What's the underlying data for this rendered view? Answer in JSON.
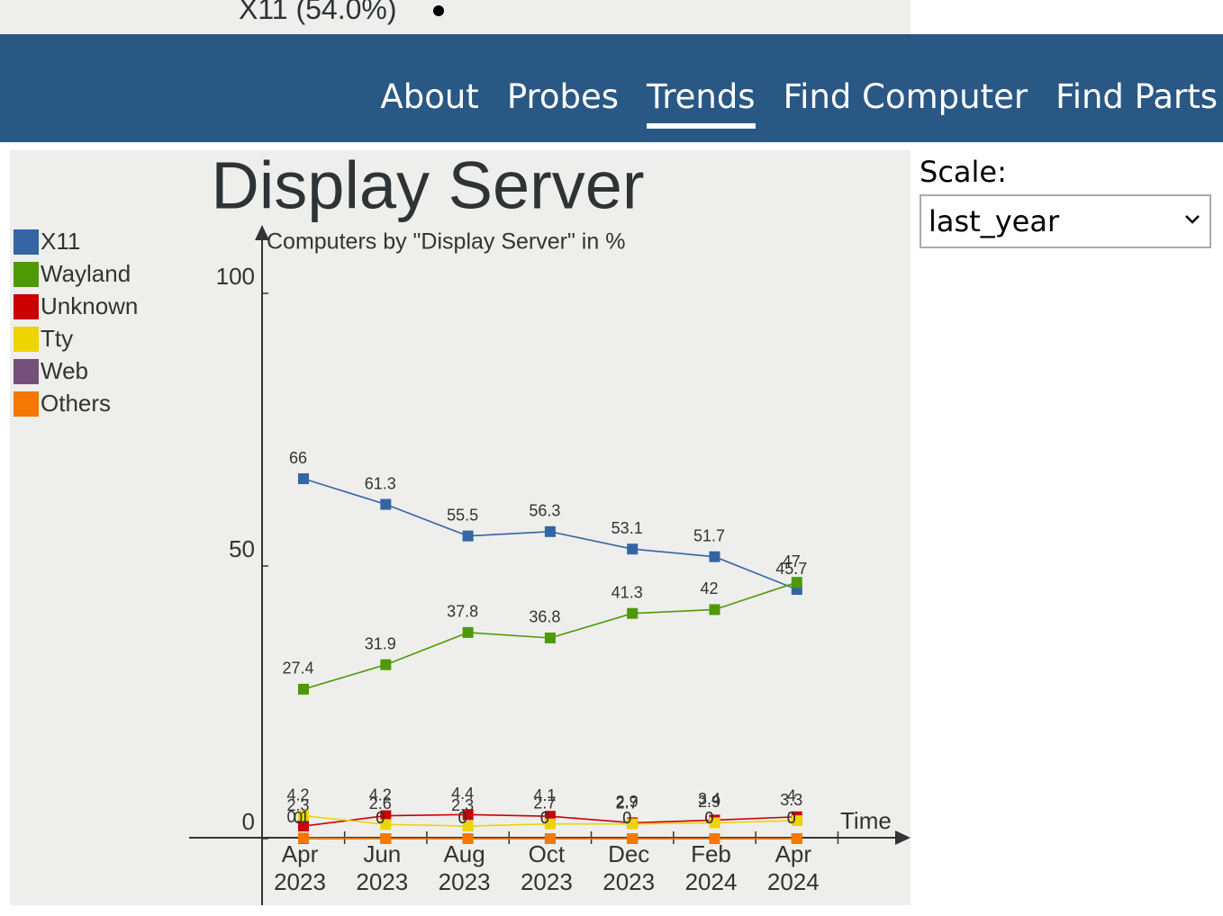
{
  "top_strip": {
    "label": "X11 (54.0%)"
  },
  "nav": {
    "links": [
      "About",
      "Probes",
      "Trends",
      "Find Computer",
      "Find Parts"
    ],
    "active": 2
  },
  "scale": {
    "label": "Scale:",
    "selected": "last_year"
  },
  "chart_data": {
    "type": "line",
    "title": "Display Server",
    "subtitle": "Computers by \"Display Server\" in %",
    "x_label": "Time",
    "categories": [
      "Apr 2023",
      "Jun 2023",
      "Aug 2023",
      "Oct 2023",
      "Dec 2023",
      "Feb 2024",
      "Apr 2024"
    ],
    "series": [
      {
        "name": "X11",
        "color": "#3465a4",
        "values": [
          66,
          61.3,
          55.5,
          56.3,
          53.1,
          51.7,
          45.7
        ]
      },
      {
        "name": "Wayland",
        "color": "#4e9a06",
        "values": [
          27.4,
          31.9,
          37.8,
          36.8,
          41.3,
          42,
          47
        ]
      },
      {
        "name": "Unknown",
        "color": "#cc0000",
        "values": [
          2.3,
          4.2,
          4.4,
          4.1,
          2.9,
          3.4,
          4
        ]
      },
      {
        "name": "Tty",
        "color": "#edd400",
        "values": [
          4.2,
          2.6,
          2.3,
          2.7,
          2.7,
          2.9,
          3.3
        ]
      },
      {
        "name": "Web",
        "color": "#75507b",
        "values": [
          0,
          0,
          0,
          0,
          0,
          0,
          0
        ]
      },
      {
        "name": "Others",
        "color": "#f57900",
        "values": [
          0.1,
          0,
          0,
          0,
          0,
          0,
          0
        ]
      }
    ],
    "ylim": [
      0,
      112
    ],
    "yticks": [
      0,
      50,
      100
    ],
    "legend": "left"
  }
}
